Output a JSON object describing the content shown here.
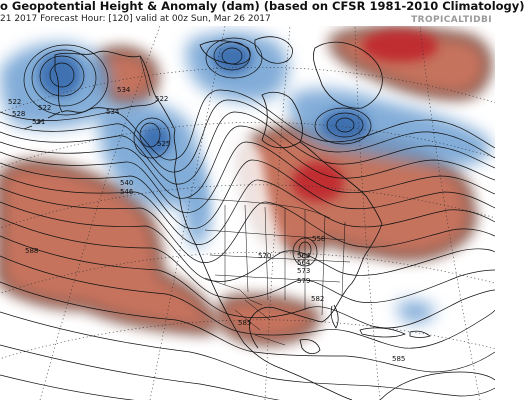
{
  "header": {
    "title": "o Geopotential Height & Anomaly (dam) (based on CFSR 1981-2010 Climatology)",
    "subtitle": " 21 2017   Forecast Hour: [120]   valid at 00z Sun, Mar 26 2017",
    "brand": "TROPICALTIDBI"
  },
  "map": {
    "colors": {
      "positive_anomaly": "#e4836a",
      "strong_positive": "#c0242a",
      "negative_anomaly": "#6d9fd2",
      "strong_negative": "#2c5fa6"
    },
    "contour_labels": [
      {
        "text": "534",
        "name": "contour-label-534-alaska"
      },
      {
        "text": "522",
        "name": "contour-label-522-alaska"
      },
      {
        "text": "522",
        "name": "contour-label-522-pacific-a"
      },
      {
        "text": "528",
        "name": "contour-label-528-pacific"
      },
      {
        "text": "522",
        "name": "contour-label-522-pacific-b"
      },
      {
        "text": "531",
        "name": "contour-label-531-pacific"
      },
      {
        "text": "534",
        "name": "contour-label-534-pacific"
      },
      {
        "text": "525",
        "name": "contour-label-525-coast"
      },
      {
        "text": "540",
        "name": "contour-label-540"
      },
      {
        "text": "546",
        "name": "contour-label-546"
      },
      {
        "text": "588",
        "name": "contour-label-588"
      },
      {
        "text": "570",
        "name": "contour-label-570"
      },
      {
        "text": "564",
        "name": "contour-label-564-a"
      },
      {
        "text": "564",
        "name": "contour-label-564-b"
      },
      {
        "text": "558",
        "name": "contour-label-558"
      },
      {
        "text": "573",
        "name": "contour-label-573"
      },
      {
        "text": "579",
        "name": "contour-label-579"
      },
      {
        "text": "582",
        "name": "contour-label-582"
      },
      {
        "text": "585",
        "name": "contour-label-585-mexico"
      },
      {
        "text": "585",
        "name": "contour-label-585-caribbean"
      }
    ]
  }
}
